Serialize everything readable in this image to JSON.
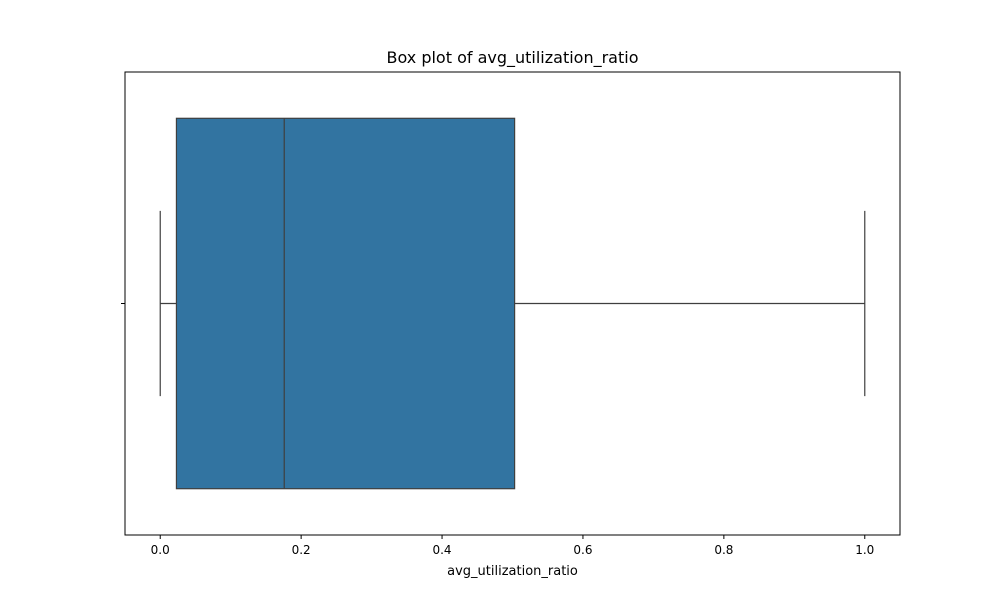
{
  "chart_data": {
    "type": "box",
    "title": "Box plot of avg_utilization_ratio",
    "xlabel": "avg_utilization_ratio",
    "ylabel": "",
    "orientation": "horizontal",
    "xlim": [
      -0.05,
      1.05
    ],
    "x_ticks": [
      0.0,
      0.2,
      0.4,
      0.6,
      0.8,
      1.0
    ],
    "x_tick_labels": [
      "0.0",
      "0.2",
      "0.4",
      "0.6",
      "0.8",
      "1.0"
    ],
    "grid": false,
    "box": {
      "whisker_low": 0.0,
      "q1": 0.023,
      "median": 0.176,
      "q3": 0.503,
      "whisker_high": 1.0
    },
    "box_color": "#3274a1",
    "line_color": "#3f3f3f"
  }
}
